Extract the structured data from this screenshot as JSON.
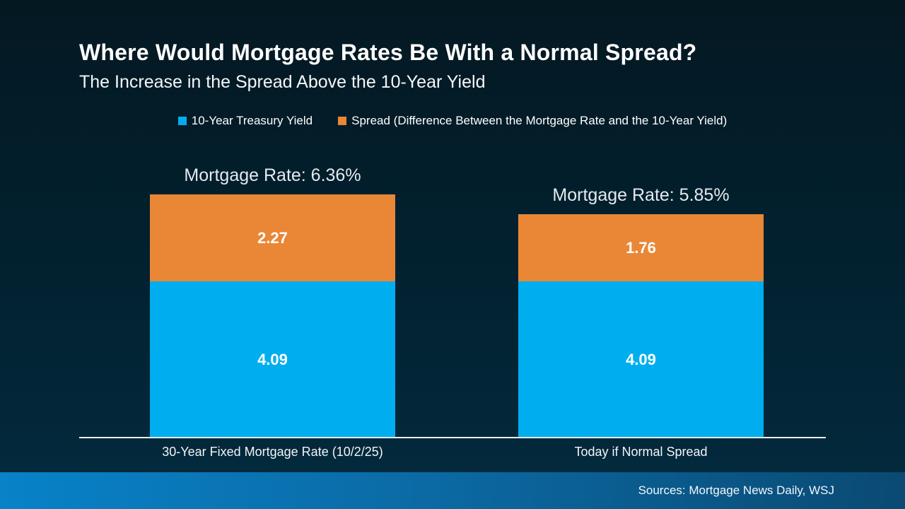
{
  "header": {
    "title": "Where Would Mortgage Rates Be With a Normal Spread?",
    "subtitle": "The Increase in the Spread Above the 10-Year Yield"
  },
  "legend": [
    {
      "label": "10-Year Treasury Yield",
      "color": "#00AEEF"
    },
    {
      "label": "Spread (Difference Between the Mortgage Rate and the 10-Year Yield)",
      "color": "#E98737"
    }
  ],
  "chart_data": {
    "type": "bar",
    "stacked": true,
    "categories": [
      "30-Year Fixed Mortgage Rate (10/2/25)",
      "Today if Normal Spread"
    ],
    "series": [
      {
        "name": "10-Year Treasury Yield",
        "color": "#00AEEF",
        "values": [
          4.09,
          4.09
        ]
      },
      {
        "name": "Spread (Difference Between the Mortgage Rate and the 10-Year Yield)",
        "color": "#E98737",
        "values": [
          2.27,
          1.76
        ]
      }
    ],
    "totals": [
      6.36,
      5.85
    ],
    "totals_labels": [
      "Mortgage Rate: 6.36%",
      "Mortgage Rate: 5.85%"
    ],
    "title": "Where Would Mortgage Rates Be With a Normal Spread?",
    "subtitle": "The Increase in the Spread Above the 10-Year Yield",
    "xlabel": "",
    "ylabel": "",
    "ylim": [
      0,
      6.36
    ],
    "grid": false,
    "legend_position": "top",
    "value_label_format": "0.00"
  },
  "colors": {
    "background_top": "#041822",
    "background_bottom": "#03293C",
    "treasury_blue": "#00AEEF",
    "spread_orange": "#E98737",
    "footer_gradient_left": "#0882C8",
    "footer_gradient_right": "#0A4A73",
    "axis_line": "#E9EFF4"
  },
  "footer": {
    "sources": "Sources: Mortgage News Daily, WSJ"
  }
}
